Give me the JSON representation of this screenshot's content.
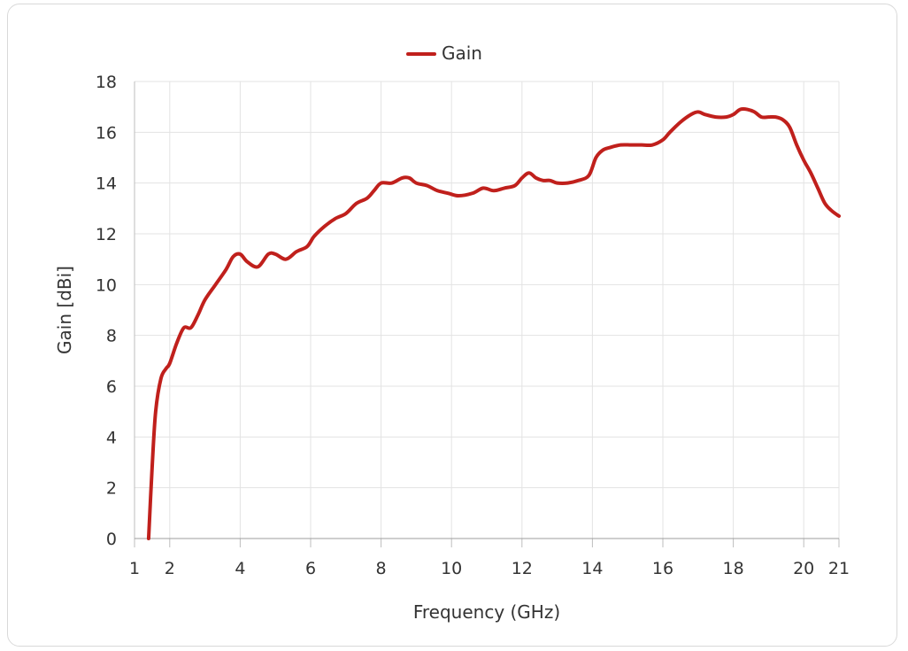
{
  "chart_data": {
    "type": "line",
    "xlabel": "Frequency (GHz)",
    "ylabel": "Gain [dBi]",
    "xlim": [
      1,
      21
    ],
    "ylim": [
      0,
      18
    ],
    "x_ticks": [
      1,
      2,
      4,
      6,
      8,
      10,
      12,
      14,
      16,
      18,
      20,
      21
    ],
    "y_ticks": [
      0,
      2,
      4,
      6,
      8,
      10,
      12,
      14,
      16,
      18
    ],
    "grid": true,
    "legend_position": "top-center",
    "series": [
      {
        "name": "Gain",
        "color": "#c0201c",
        "x": [
          1.4,
          1.5,
          1.6,
          1.75,
          1.9,
          2.0,
          2.2,
          2.4,
          2.6,
          2.8,
          3.0,
          3.3,
          3.6,
          3.8,
          4.0,
          4.2,
          4.5,
          4.8,
          5.0,
          5.3,
          5.6,
          5.9,
          6.1,
          6.4,
          6.7,
          7.0,
          7.3,
          7.6,
          7.8,
          8.0,
          8.3,
          8.6,
          8.8,
          9.0,
          9.3,
          9.6,
          9.9,
          10.2,
          10.6,
          10.9,
          11.2,
          11.5,
          11.8,
          12.0,
          12.2,
          12.4,
          12.6,
          12.8,
          13.0,
          13.3,
          13.6,
          13.9,
          14.1,
          14.3,
          14.5,
          14.8,
          15.1,
          15.4,
          15.7,
          16.0,
          16.2,
          16.5,
          16.8,
          17.0,
          17.2,
          17.5,
          17.8,
          18.0,
          18.2,
          18.4,
          18.6,
          18.8,
          19.0,
          19.2,
          19.4,
          19.6,
          19.8,
          20.0,
          20.2,
          20.4,
          20.6,
          20.8,
          21.0
        ],
        "y": [
          0.0,
          2.8,
          5.0,
          6.3,
          6.7,
          6.9,
          7.7,
          8.3,
          8.3,
          8.8,
          9.4,
          10.0,
          10.6,
          11.1,
          11.2,
          10.9,
          10.7,
          11.2,
          11.2,
          11.0,
          11.3,
          11.5,
          11.9,
          12.3,
          12.6,
          12.8,
          13.2,
          13.4,
          13.7,
          14.0,
          14.0,
          14.2,
          14.2,
          14.0,
          13.9,
          13.7,
          13.6,
          13.5,
          13.6,
          13.8,
          13.7,
          13.8,
          13.9,
          14.2,
          14.4,
          14.2,
          14.1,
          14.1,
          14.0,
          14.0,
          14.1,
          14.3,
          15.0,
          15.3,
          15.4,
          15.5,
          15.5,
          15.5,
          15.5,
          15.7,
          16.0,
          16.4,
          16.7,
          16.8,
          16.7,
          16.6,
          16.6,
          16.7,
          16.9,
          16.9,
          16.8,
          16.6,
          16.6,
          16.6,
          16.5,
          16.2,
          15.5,
          14.9,
          14.4,
          13.8,
          13.2,
          12.9,
          12.7
        ]
      }
    ]
  }
}
